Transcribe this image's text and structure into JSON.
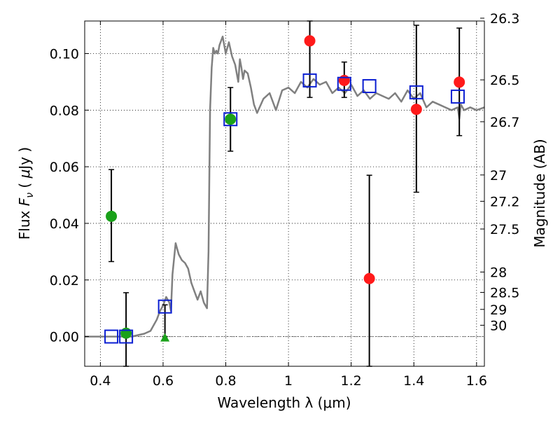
{
  "chart_data": {
    "type": "scatter",
    "xlabel": "Wavelength  λ (μm)",
    "ylabel": "Flux  F_ν  ( μJy )",
    "ylabel_parts": {
      "prefix": "Flux ",
      "symbol": "F",
      "sub": "ν",
      "units_open": "  ( ",
      "mu": "μ",
      "units_rest": "Jy )"
    },
    "y2label": "Magnitude (AB)",
    "xlim": [
      0.35,
      1.625
    ],
    "ylim": [
      -0.0105,
      0.1115
    ],
    "grid": true,
    "x_ticks": [
      {
        "value": 0.4,
        "label": "0.4"
      },
      {
        "value": 0.6,
        "label": "0.6"
      },
      {
        "value": 0.8,
        "label": "0.8"
      },
      {
        "value": 1.0,
        "label": "1"
      },
      {
        "value": 1.2,
        "label": "1.2"
      },
      {
        "value": 1.4,
        "label": "1.4"
      },
      {
        "value": 1.6,
        "label": "1.6"
      }
    ],
    "y_ticks": [
      {
        "value": 0.0,
        "label": "0.00"
      },
      {
        "value": 0.02,
        "label": "0.02"
      },
      {
        "value": 0.04,
        "label": "0.04"
      },
      {
        "value": 0.06,
        "label": "0.06"
      },
      {
        "value": 0.08,
        "label": "0.08"
      },
      {
        "value": 0.1,
        "label": "0.10"
      }
    ],
    "y2_ticks": [
      {
        "flux": 0.1125,
        "label": "26.3"
      },
      {
        "flux": 0.0907,
        "label": "26.5"
      },
      {
        "flux": 0.0759,
        "label": "26.7"
      },
      {
        "flux": 0.0571,
        "label": "27"
      },
      {
        "flux": 0.0478,
        "label": "27.2"
      },
      {
        "flux": 0.038,
        "label": "27.5"
      },
      {
        "flux": 0.0228,
        "label": "28"
      },
      {
        "flux": 0.0156,
        "label": "28.5"
      },
      {
        "flux": 0.0096,
        "label": "29"
      },
      {
        "flux": 0.004,
        "label": "30"
      }
    ],
    "zero_line": {
      "y": 0.0,
      "color": "#808080"
    },
    "colors": {
      "model": "#808080",
      "green": "#1aa11a",
      "red": "#ff1a1a",
      "blue": "#0a1ed2",
      "errorbar": "#000000"
    },
    "series": [
      {
        "name": "model spectrum",
        "kind": "line",
        "x": [
          0.35,
          0.4,
          0.45,
          0.5,
          0.52,
          0.54,
          0.56,
          0.58,
          0.59,
          0.6,
          0.61,
          0.62,
          0.625,
          0.63,
          0.64,
          0.645,
          0.65,
          0.66,
          0.67,
          0.68,
          0.69,
          0.7,
          0.71,
          0.72,
          0.73,
          0.74,
          0.745,
          0.75,
          0.755,
          0.76,
          0.765,
          0.77,
          0.775,
          0.78,
          0.79,
          0.8,
          0.81,
          0.82,
          0.83,
          0.84,
          0.845,
          0.85,
          0.855,
          0.86,
          0.87,
          0.88,
          0.89,
          0.9,
          0.92,
          0.94,
          0.96,
          0.98,
          1.0,
          1.02,
          1.04,
          1.06,
          1.08,
          1.1,
          1.12,
          1.14,
          1.16,
          1.18,
          1.2,
          1.22,
          1.24,
          1.26,
          1.28,
          1.3,
          1.32,
          1.34,
          1.36,
          1.38,
          1.4,
          1.42,
          1.44,
          1.46,
          1.48,
          1.5,
          1.52,
          1.54,
          1.545,
          1.55,
          1.56,
          1.58,
          1.6,
          1.625
        ],
        "y": [
          0.0,
          0.0,
          0.0,
          0.0,
          0.0005,
          0.001,
          0.002,
          0.006,
          0.009,
          0.011,
          0.014,
          0.012,
          0.009,
          0.022,
          0.033,
          0.031,
          0.029,
          0.027,
          0.026,
          0.024,
          0.019,
          0.016,
          0.013,
          0.016,
          0.012,
          0.01,
          0.03,
          0.08,
          0.095,
          0.102,
          0.1,
          0.101,
          0.1,
          0.103,
          0.106,
          0.1,
          0.104,
          0.099,
          0.096,
          0.09,
          0.098,
          0.095,
          0.091,
          0.094,
          0.093,
          0.088,
          0.082,
          0.079,
          0.084,
          0.086,
          0.08,
          0.087,
          0.088,
          0.086,
          0.09,
          0.088,
          0.091,
          0.089,
          0.09,
          0.086,
          0.088,
          0.086,
          0.089,
          0.085,
          0.087,
          0.084,
          0.086,
          0.085,
          0.084,
          0.086,
          0.083,
          0.087,
          0.084,
          0.086,
          0.081,
          0.083,
          0.082,
          0.081,
          0.08,
          0.081,
          0.077,
          0.082,
          0.08,
          0.081,
          0.08,
          0.081
        ]
      },
      {
        "name": "green detections",
        "kind": "points",
        "marker": "circle-filled",
        "color": "#1aa11a",
        "points": [
          {
            "x": 0.435,
            "y": 0.0425,
            "lo": 0.0265,
            "hi": 0.059
          },
          {
            "x": 0.482,
            "y": 0.0012,
            "lo": -0.0105,
            "hi": 0.0155
          },
          {
            "x": 0.815,
            "y": 0.0768,
            "lo": 0.0655,
            "hi": 0.088
          }
        ]
      },
      {
        "name": "green upper limit",
        "kind": "points",
        "marker": "triangle-filled",
        "color": "#1aa11a",
        "points": [
          {
            "x": 0.606,
            "y": -0.0005,
            "lo": 0.0,
            "hi": 0.0112
          }
        ]
      },
      {
        "name": "red detections",
        "kind": "points",
        "marker": "circle-filled",
        "color": "#ff1a1a",
        "points": [
          {
            "x": 1.068,
            "y": 0.1045,
            "lo": 0.0845,
            "hi": 0.1115
          },
          {
            "x": 1.178,
            "y": 0.0905,
            "lo": 0.0845,
            "hi": 0.097
          },
          {
            "x": 1.258,
            "y": 0.0205,
            "lo": -0.0105,
            "hi": 0.057
          },
          {
            "x": 1.408,
            "y": 0.0803,
            "lo": 0.051,
            "hi": 0.11
          },
          {
            "x": 1.545,
            "y": 0.0899,
            "lo": 0.071,
            "hi": 0.109
          }
        ]
      },
      {
        "name": "model photometry",
        "kind": "points",
        "marker": "square-open",
        "color": "#0a1ed2",
        "points": [
          {
            "x": 0.435,
            "y": 0.0
          },
          {
            "x": 0.482,
            "y": 0.0
          },
          {
            "x": 0.606,
            "y": 0.0106
          },
          {
            "x": 0.815,
            "y": 0.0768
          },
          {
            "x": 1.068,
            "y": 0.0905
          },
          {
            "x": 1.178,
            "y": 0.0893
          },
          {
            "x": 1.258,
            "y": 0.0885
          },
          {
            "x": 1.408,
            "y": 0.0863
          },
          {
            "x": 1.54,
            "y": 0.0848
          }
        ]
      }
    ]
  }
}
